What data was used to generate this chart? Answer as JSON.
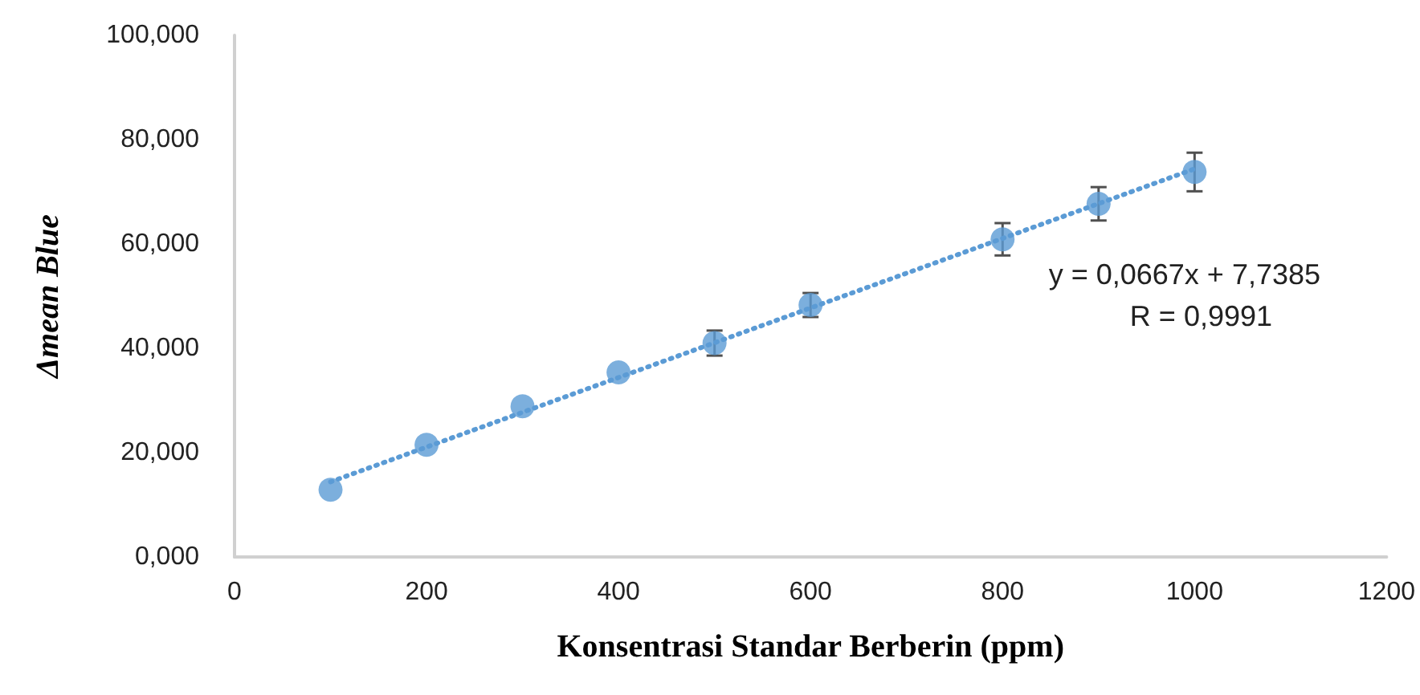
{
  "chart_data": {
    "type": "scatter",
    "xlabel": "Konsentrasi Standar Berberin (ppm)",
    "ylabel": "Δmean Blue",
    "x": [
      100,
      200,
      300,
      400,
      500,
      600,
      800,
      900,
      1000
    ],
    "series": [
      {
        "color": "#5b9bd5",
        "values": [
          12.9,
          21.5,
          28.9,
          35.4,
          41.0,
          48.3,
          60.9,
          67.7,
          73.8
        ],
        "errors": [
          null,
          null,
          null,
          null,
          2.4,
          2.3,
          3.1,
          3.2,
          3.7
        ],
        "marker": "circle"
      },
      {
        "type": "line",
        "color": "#5b9bd5",
        "x": [
          100,
          1000
        ],
        "values": [
          14.4,
          74.4
        ],
        "line_style": "dotted",
        "marker": "none"
      }
    ],
    "xlim": [
      0,
      1200
    ],
    "xticks": [
      0,
      200,
      400,
      600,
      800,
      1000,
      1200
    ],
    "ylim": [
      0,
      100
    ],
    "yticks": [
      {
        "value": 0,
        "label": "0,000"
      },
      {
        "value": 20,
        "label": "20,000"
      },
      {
        "value": 40,
        "label": "40,000"
      },
      {
        "value": 60,
        "label": "60,000"
      },
      {
        "value": 80,
        "label": "80,000"
      },
      {
        "value": 100,
        "label": "100,000"
      }
    ],
    "annotations": [
      "y = 0,0667x + 7,7385",
      "R = 0,9991"
    ],
    "grid": false
  }
}
